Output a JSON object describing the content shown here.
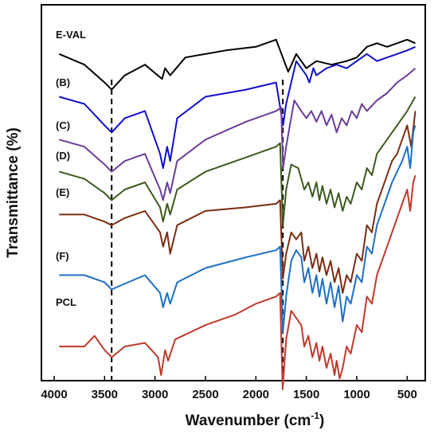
{
  "chart_data": {
    "type": "line",
    "xlabel": "Wavenumber (cm",
    "xlabel_sup": "-1",
    "xlabel_end": ")",
    "ylabel": "Transmittance (%)",
    "xlim": [
      4000,
      400
    ],
    "x_reversed": true,
    "ylim": [
      0,
      100
    ],
    "y_ticks_shown": false,
    "grid": false,
    "x_ticks": [
      "4000",
      "3500",
      "3000",
      "2500",
      "2000",
      "1500",
      "1000",
      "500"
    ],
    "reference_lines": [
      {
        "x": 3430,
        "style": "dashed",
        "color": "#000000"
      },
      {
        "x": 1733,
        "style": "dashed",
        "color": "#000000"
      }
    ],
    "series": [
      {
        "name": "E-VAL",
        "color": "#000000",
        "points": [
          [
            3950,
            88
          ],
          [
            3700,
            85
          ],
          [
            3500,
            80
          ],
          [
            3430,
            78
          ],
          [
            3300,
            82
          ],
          [
            3100,
            85
          ],
          [
            2930,
            81
          ],
          [
            2900,
            84
          ],
          [
            2850,
            82
          ],
          [
            2700,
            87
          ],
          [
            2300,
            89
          ],
          [
            2000,
            90
          ],
          [
            1800,
            92
          ],
          [
            1680,
            83
          ],
          [
            1600,
            88
          ],
          [
            1500,
            84
          ],
          [
            1400,
            86
          ],
          [
            1250,
            85
          ],
          [
            1100,
            86
          ],
          [
            1000,
            87
          ],
          [
            900,
            90
          ],
          [
            800,
            91
          ],
          [
            700,
            90
          ],
          [
            600,
            91
          ],
          [
            500,
            92
          ],
          [
            420,
            91
          ]
        ]
      },
      {
        "name": "(B)",
        "color": "#1010cc",
        "points": [
          [
            3950,
            76
          ],
          [
            3700,
            74
          ],
          [
            3500,
            68
          ],
          [
            3430,
            66
          ],
          [
            3300,
            70
          ],
          [
            3100,
            72
          ],
          [
            2950,
            60
          ],
          [
            2920,
            56
          ],
          [
            2880,
            62
          ],
          [
            2850,
            58
          ],
          [
            2780,
            70
          ],
          [
            2500,
            76
          ],
          [
            2100,
            78
          ],
          [
            1800,
            80
          ],
          [
            1730,
            68
          ],
          [
            1700,
            74
          ],
          [
            1600,
            86
          ],
          [
            1550,
            84
          ],
          [
            1500,
            82
          ],
          [
            1470,
            80
          ],
          [
            1430,
            84
          ],
          [
            1400,
            82
          ],
          [
            1300,
            84
          ],
          [
            1200,
            85
          ],
          [
            1100,
            84
          ],
          [
            1000,
            86
          ],
          [
            900,
            88
          ],
          [
            800,
            86
          ],
          [
            700,
            87
          ],
          [
            600,
            88
          ],
          [
            500,
            89
          ],
          [
            420,
            90
          ]
        ]
      },
      {
        "name": "(C)",
        "color": "#6a3d9a",
        "points": [
          [
            3950,
            64
          ],
          [
            3700,
            62
          ],
          [
            3500,
            57
          ],
          [
            3430,
            55
          ],
          [
            3300,
            58
          ],
          [
            3100,
            60
          ],
          [
            2950,
            50
          ],
          [
            2920,
            47
          ],
          [
            2880,
            52
          ],
          [
            2850,
            49
          ],
          [
            2780,
            58
          ],
          [
            2500,
            64
          ],
          [
            2100,
            69
          ],
          [
            1800,
            72
          ],
          [
            1750,
            73
          ],
          [
            1730,
            56
          ],
          [
            1700,
            62
          ],
          [
            1620,
            75
          ],
          [
            1550,
            72
          ],
          [
            1500,
            70
          ],
          [
            1450,
            72
          ],
          [
            1400,
            69
          ],
          [
            1350,
            72
          ],
          [
            1300,
            68
          ],
          [
            1250,
            71
          ],
          [
            1200,
            66
          ],
          [
            1150,
            70
          ],
          [
            1100,
            68
          ],
          [
            1050,
            72
          ],
          [
            1000,
            70
          ],
          [
            950,
            74
          ],
          [
            900,
            72
          ],
          [
            800,
            75
          ],
          [
            700,
            77
          ],
          [
            600,
            80
          ],
          [
            500,
            82
          ],
          [
            420,
            84
          ]
        ]
      },
      {
        "name": "(D)",
        "color": "#3d5a1e",
        "points": [
          [
            3950,
            55
          ],
          [
            3700,
            53
          ],
          [
            3500,
            49
          ],
          [
            3430,
            47
          ],
          [
            3300,
            50
          ],
          [
            3100,
            52
          ],
          [
            2950,
            45
          ],
          [
            2920,
            41
          ],
          [
            2880,
            46
          ],
          [
            2850,
            43
          ],
          [
            2780,
            50
          ],
          [
            2500,
            55
          ],
          [
            2100,
            59
          ],
          [
            1800,
            62
          ],
          [
            1760,
            63
          ],
          [
            1733,
            40
          ],
          [
            1700,
            50
          ],
          [
            1650,
            57
          ],
          [
            1580,
            56
          ],
          [
            1520,
            50
          ],
          [
            1480,
            52
          ],
          [
            1440,
            48
          ],
          [
            1400,
            52
          ],
          [
            1370,
            47
          ],
          [
            1340,
            51
          ],
          [
            1300,
            46
          ],
          [
            1260,
            50
          ],
          [
            1220,
            45
          ],
          [
            1180,
            49
          ],
          [
            1140,
            44
          ],
          [
            1100,
            48
          ],
          [
            1060,
            46
          ],
          [
            1000,
            52
          ],
          [
            950,
            50
          ],
          [
            900,
            56
          ],
          [
            850,
            54
          ],
          [
            800,
            60
          ],
          [
            750,
            62
          ],
          [
            700,
            64
          ],
          [
            650,
            66
          ],
          [
            600,
            68
          ],
          [
            500,
            72
          ],
          [
            420,
            76
          ]
        ]
      },
      {
        "name": "(E)",
        "color": "#7b2d12",
        "points": [
          [
            3950,
            43
          ],
          [
            3700,
            43
          ],
          [
            3500,
            41
          ],
          [
            3430,
            40
          ],
          [
            3300,
            42
          ],
          [
            3100,
            44
          ],
          [
            2950,
            38
          ],
          [
            2920,
            34
          ],
          [
            2880,
            38
          ],
          [
            2850,
            32
          ],
          [
            2780,
            40
          ],
          [
            2500,
            44
          ],
          [
            2100,
            45
          ],
          [
            1800,
            46
          ],
          [
            1760,
            47
          ],
          [
            1733,
            25
          ],
          [
            1700,
            32
          ],
          [
            1650,
            38
          ],
          [
            1600,
            36
          ],
          [
            1550,
            38
          ],
          [
            1520,
            30
          ],
          [
            1480,
            34
          ],
          [
            1440,
            28
          ],
          [
            1400,
            32
          ],
          [
            1370,
            27
          ],
          [
            1340,
            31
          ],
          [
            1300,
            26
          ],
          [
            1260,
            30
          ],
          [
            1220,
            24
          ],
          [
            1180,
            28
          ],
          [
            1140,
            21
          ],
          [
            1100,
            26
          ],
          [
            1060,
            24
          ],
          [
            1000,
            32
          ],
          [
            950,
            30
          ],
          [
            900,
            40
          ],
          [
            850,
            38
          ],
          [
            800,
            46
          ],
          [
            750,
            50
          ],
          [
            700,
            54
          ],
          [
            650,
            58
          ],
          [
            600,
            60
          ],
          [
            550,
            64
          ],
          [
            500,
            68
          ],
          [
            460,
            62
          ],
          [
            420,
            72
          ]
        ]
      },
      {
        "name": "(F)",
        "color": "#1e6fc4",
        "points": [
          [
            3950,
            26
          ],
          [
            3700,
            26
          ],
          [
            3500,
            24
          ],
          [
            3430,
            22
          ],
          [
            3350,
            23
          ],
          [
            3100,
            26
          ],
          [
            2950,
            21
          ],
          [
            2920,
            17
          ],
          [
            2880,
            21
          ],
          [
            2850,
            18
          ],
          [
            2780,
            24
          ],
          [
            2500,
            28
          ],
          [
            2100,
            31
          ],
          [
            1800,
            33
          ],
          [
            1760,
            34
          ],
          [
            1733,
            10
          ],
          [
            1700,
            20
          ],
          [
            1650,
            30
          ],
          [
            1600,
            33
          ],
          [
            1550,
            31
          ],
          [
            1520,
            24
          ],
          [
            1480,
            28
          ],
          [
            1440,
            21
          ],
          [
            1400,
            26
          ],
          [
            1370,
            20
          ],
          [
            1340,
            25
          ],
          [
            1300,
            18
          ],
          [
            1260,
            24
          ],
          [
            1220,
            17
          ],
          [
            1180,
            23
          ],
          [
            1140,
            13
          ],
          [
            1100,
            20
          ],
          [
            1060,
            18
          ],
          [
            1000,
            26
          ],
          [
            950,
            24
          ],
          [
            900,
            34
          ],
          [
            850,
            32
          ],
          [
            800,
            40
          ],
          [
            750,
            44
          ],
          [
            700,
            48
          ],
          [
            650,
            52
          ],
          [
            600,
            55
          ],
          [
            550,
            58
          ],
          [
            500,
            62
          ],
          [
            470,
            56
          ],
          [
            440,
            66
          ],
          [
            420,
            68
          ]
        ]
      },
      {
        "name": "PCL",
        "color": "#c0392b",
        "points": [
          [
            3950,
            6
          ],
          [
            3700,
            6
          ],
          [
            3600,
            9
          ],
          [
            3500,
            5
          ],
          [
            3430,
            3
          ],
          [
            3300,
            6
          ],
          [
            3100,
            7
          ],
          [
            2970,
            3
          ],
          [
            2940,
            -2
          ],
          [
            2900,
            5
          ],
          [
            2870,
            2
          ],
          [
            2800,
            8
          ],
          [
            2500,
            12
          ],
          [
            2200,
            15
          ],
          [
            2000,
            18
          ],
          [
            1800,
            20
          ],
          [
            1760,
            21
          ],
          [
            1735,
            -6
          ],
          [
            1720,
            0
          ],
          [
            1700,
            8
          ],
          [
            1650,
            16
          ],
          [
            1600,
            14
          ],
          [
            1550,
            12
          ],
          [
            1520,
            6
          ],
          [
            1480,
            9
          ],
          [
            1440,
            3
          ],
          [
            1400,
            7
          ],
          [
            1370,
            2
          ],
          [
            1340,
            6
          ],
          [
            1300,
            0
          ],
          [
            1260,
            4
          ],
          [
            1220,
            -2
          ],
          [
            1200,
            2
          ],
          [
            1170,
            -3
          ],
          [
            1140,
            0
          ],
          [
            1100,
            6
          ],
          [
            1060,
            4
          ],
          [
            1000,
            12
          ],
          [
            950,
            10
          ],
          [
            900,
            20
          ],
          [
            850,
            18
          ],
          [
            800,
            26
          ],
          [
            750,
            30
          ],
          [
            700,
            34
          ],
          [
            650,
            38
          ],
          [
            600,
            42
          ],
          [
            550,
            46
          ],
          [
            500,
            50
          ],
          [
            470,
            44
          ],
          [
            440,
            52
          ],
          [
            420,
            54
          ]
        ]
      }
    ]
  }
}
